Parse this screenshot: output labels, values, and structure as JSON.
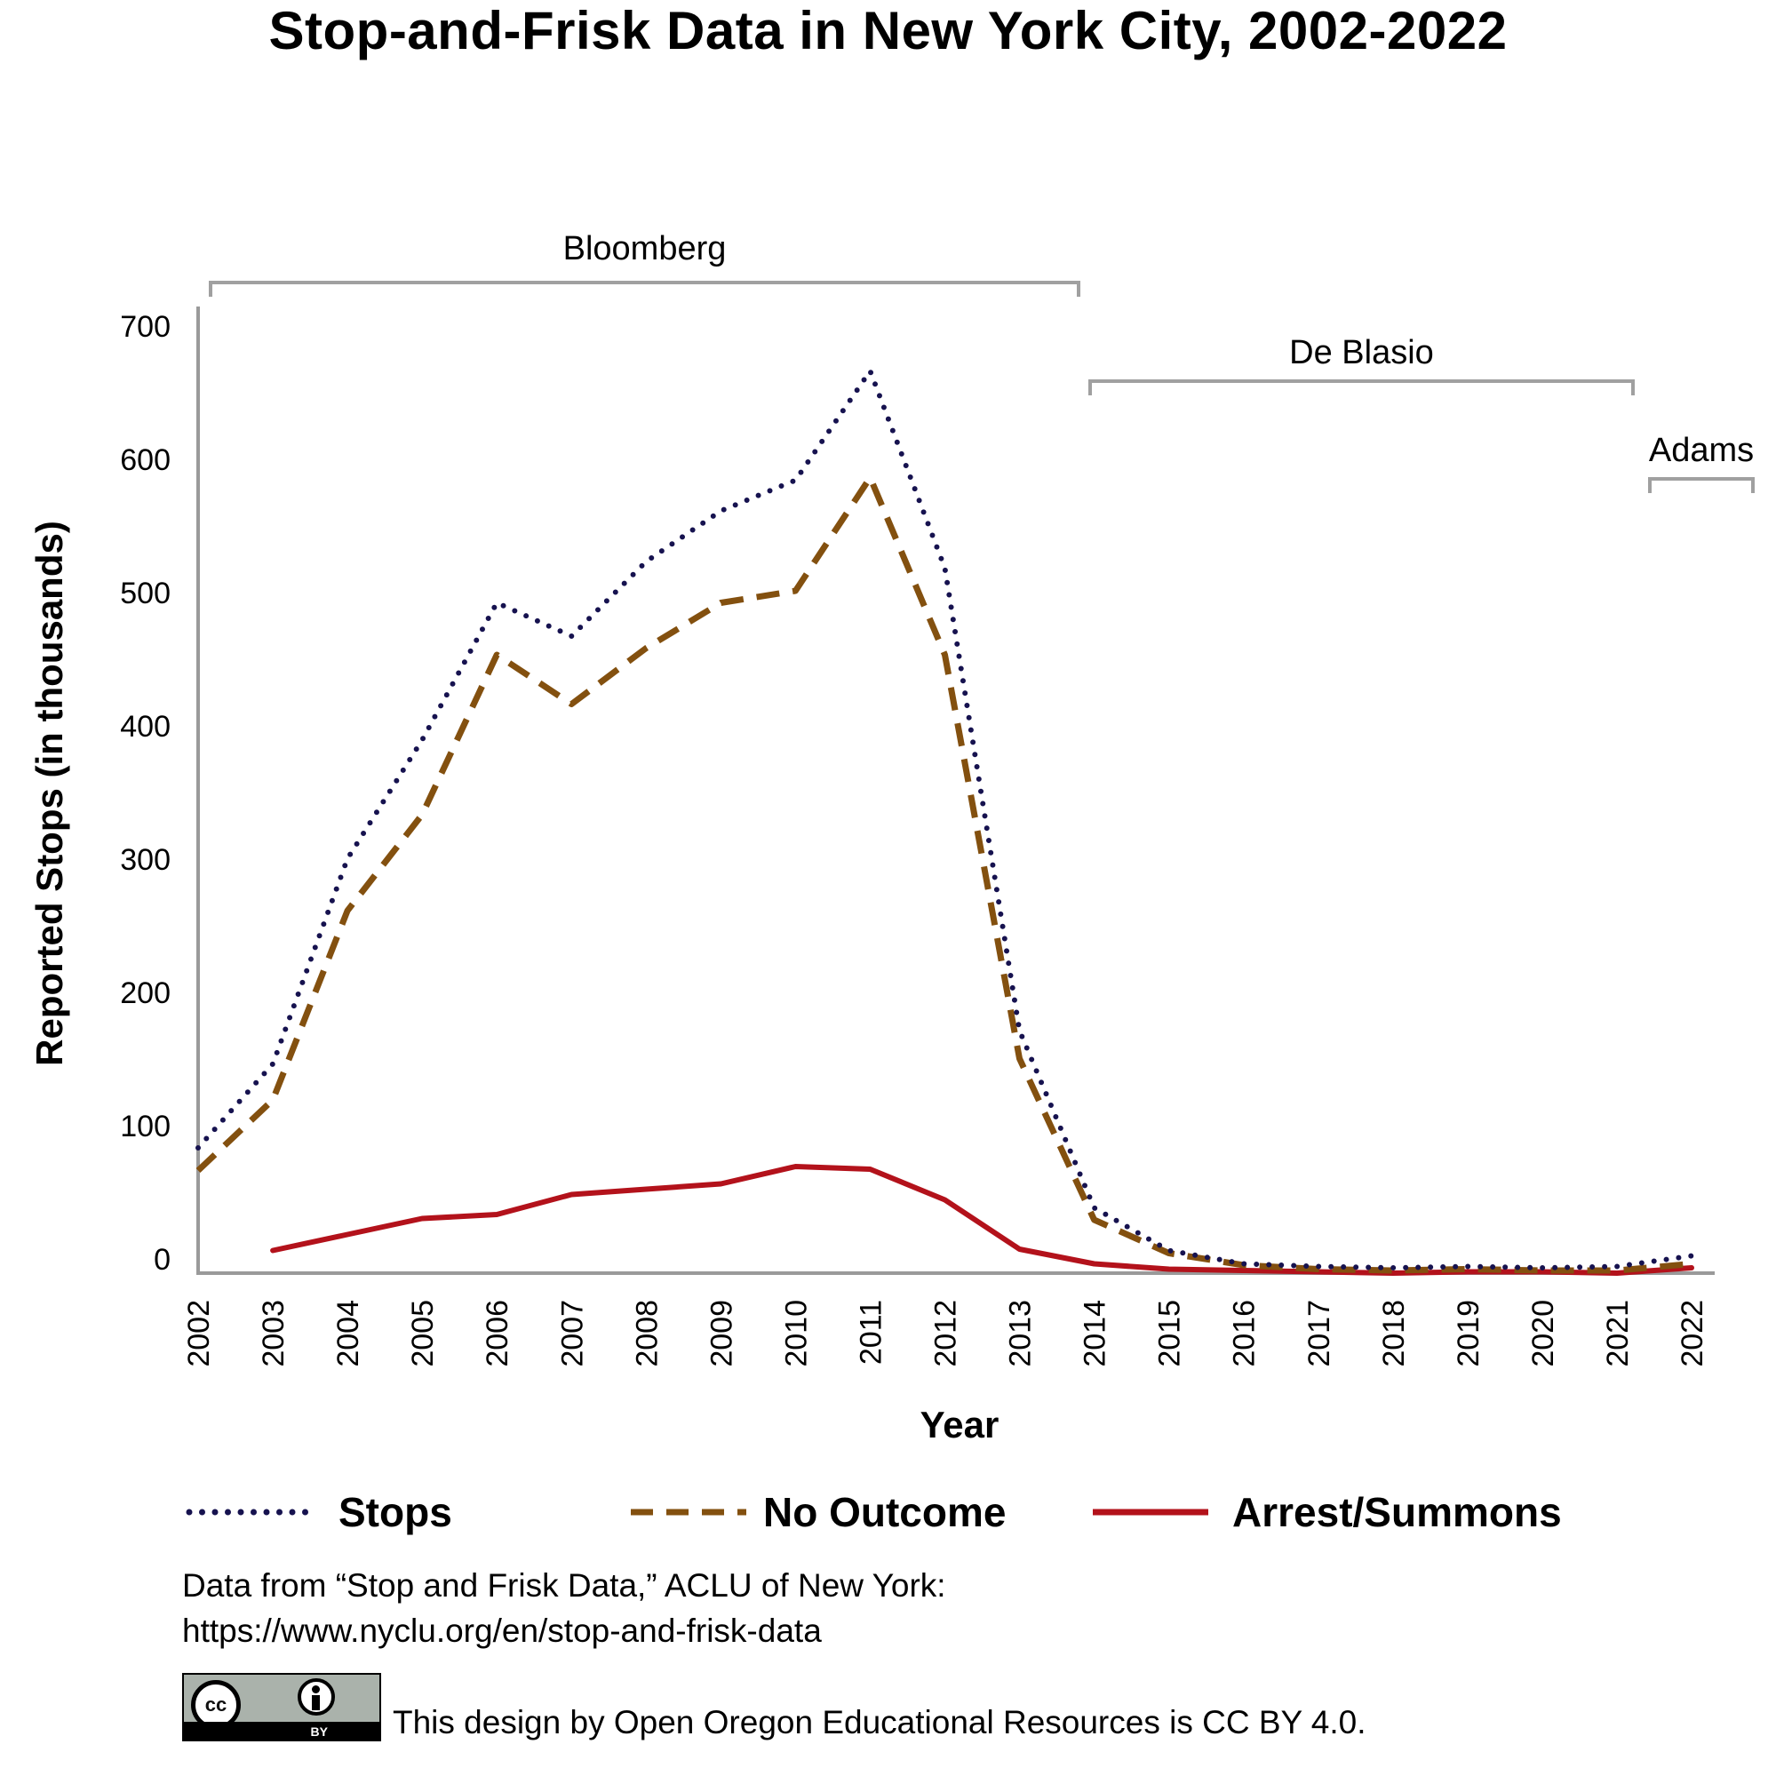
{
  "title": "Stop-and-Frisk Data in New York City, 2002-2022",
  "legend": {
    "stops": "Stops",
    "no_outcome": "No Outcome",
    "arrest": "Arrest/Summons"
  },
  "footer": {
    "source_line1": "Data from “Stop and Frisk Data,” ACLU of New York:",
    "source_line2": "https://www.nyclu.org/en/stop-and-frisk-data",
    "license": "This design by Open Oregon Educational Resources is CC BY 4.0.",
    "badge_cc": "cc",
    "badge_by": "BY"
  },
  "colors": {
    "stops": "#16124f",
    "no_outcome": "#83500f",
    "arrest": "#b3121b",
    "axis": "#9a9a9a",
    "bracket": "#a0a0a0"
  },
  "chart_data": {
    "type": "line",
    "title": "Stop-and-Frisk Data in New York City, 2002-2022",
    "xlabel": "Year",
    "ylabel": "Reported Stops (in thousands)",
    "ylim": [
      0,
      700
    ],
    "yticks": [
      0,
      100,
      200,
      300,
      400,
      500,
      600,
      700
    ],
    "grid": false,
    "legend_position": "bottom",
    "x": [
      "2002",
      "2003",
      "2004",
      "2005",
      "2006",
      "2007",
      "2008",
      "2009",
      "2010",
      "2011",
      "2012",
      "2013",
      "2014",
      "2015",
      "2016",
      "2017",
      "2018",
      "2019",
      "2020",
      "2021",
      "2022"
    ],
    "series": [
      {
        "name": "Stops",
        "style": "dotted",
        "values": [
          94,
          157,
          311,
          400,
          503,
          478,
          534,
          572,
          595,
          677,
          529,
          182,
          49,
          17,
          7,
          5,
          4,
          5,
          4,
          5,
          13
        ]
      },
      {
        "name": "No Outcome",
        "style": "dashed",
        "values": [
          77,
          130,
          272,
          344,
          464,
          427,
          469,
          503,
          512,
          597,
          464,
          161,
          40,
          15,
          6,
          3,
          2,
          3,
          2,
          2,
          7
        ]
      },
      {
        "name": "Arrest/Summons",
        "style": "solid",
        "values": [
          null,
          17,
          29,
          41,
          44,
          59,
          63,
          67,
          80,
          78,
          55,
          18,
          7,
          3,
          2,
          1,
          0,
          1,
          1,
          0,
          4
        ]
      }
    ],
    "annotations": [
      {
        "label": "Bloomberg",
        "from": "2002",
        "to": "2013"
      },
      {
        "label": "De Blasio",
        "from": "2014",
        "to": "2021"
      },
      {
        "label": "Adams",
        "from": "2022",
        "to": "2022"
      }
    ]
  }
}
